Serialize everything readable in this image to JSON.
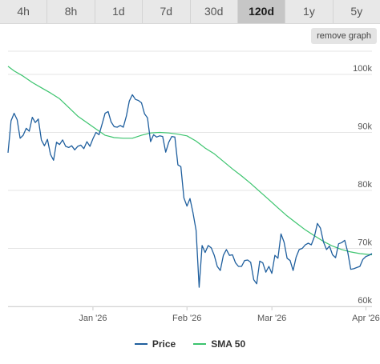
{
  "tabs": [
    {
      "label": "4h",
      "active": false
    },
    {
      "label": "8h",
      "active": false
    },
    {
      "label": "1d",
      "active": false
    },
    {
      "label": "7d",
      "active": false
    },
    {
      "label": "30d",
      "active": false
    },
    {
      "label": "120d",
      "active": true
    },
    {
      "label": "1y",
      "active": false
    },
    {
      "label": "5y",
      "active": false
    }
  ],
  "remove_graph_label": "remove graph",
  "colors": {
    "price": "#1f5f9e",
    "sma": "#3cc46e",
    "grid": "#e5e5e5"
  },
  "chart_data": {
    "type": "line",
    "x_range": [
      "2025-12-04",
      "2026-04-03"
    ],
    "ylim": [
      60000,
      104000
    ],
    "y_ticks": [
      {
        "value": 60000,
        "label": "60k"
      },
      {
        "value": 70000,
        "label": "70k"
      },
      {
        "value": 80000,
        "label": "80k"
      },
      {
        "value": 90000,
        "label": "90k"
      },
      {
        "value": 100000,
        "label": "100k"
      }
    ],
    "x_ticks": [
      {
        "date": "2026-01-01",
        "label": "Jan '26"
      },
      {
        "date": "2026-02-01",
        "label": "Feb '26"
      },
      {
        "date": "2026-03-01",
        "label": "Mar '26"
      },
      {
        "date": "2026-04-01",
        "label": "Apr '26"
      }
    ],
    "grid": true,
    "legend_position": "bottom-center",
    "series": [
      {
        "name": "Price",
        "points": [
          [
            "2025-12-04",
            86500
          ],
          [
            "2025-12-05",
            92000
          ],
          [
            "2025-12-06",
            93300
          ],
          [
            "2025-12-07",
            92200
          ],
          [
            "2025-12-08",
            89000
          ],
          [
            "2025-12-09",
            89500
          ],
          [
            "2025-12-10",
            90700
          ],
          [
            "2025-12-11",
            90200
          ],
          [
            "2025-12-12",
            92600
          ],
          [
            "2025-12-13",
            91700
          ],
          [
            "2025-12-14",
            92300
          ],
          [
            "2025-12-15",
            88700
          ],
          [
            "2025-12-16",
            87700
          ],
          [
            "2025-12-17",
            88800
          ],
          [
            "2025-12-18",
            86200
          ],
          [
            "2025-12-19",
            85200
          ],
          [
            "2025-12-20",
            88300
          ],
          [
            "2025-12-21",
            87900
          ],
          [
            "2025-12-22",
            88700
          ],
          [
            "2025-12-23",
            87600
          ],
          [
            "2025-12-24",
            87400
          ],
          [
            "2025-12-25",
            87700
          ],
          [
            "2025-12-26",
            87000
          ],
          [
            "2025-12-27",
            87600
          ],
          [
            "2025-12-28",
            87800
          ],
          [
            "2025-12-29",
            87200
          ],
          [
            "2025-12-30",
            88400
          ],
          [
            "2025-12-31",
            87600
          ],
          [
            "2026-01-01",
            88900
          ],
          [
            "2026-01-02",
            90000
          ],
          [
            "2026-01-03",
            89600
          ],
          [
            "2026-01-04",
            91400
          ],
          [
            "2026-01-05",
            93300
          ],
          [
            "2026-01-06",
            93600
          ],
          [
            "2026-01-07",
            91800
          ],
          [
            "2026-01-08",
            91000
          ],
          [
            "2026-01-09",
            90900
          ],
          [
            "2026-01-10",
            91200
          ],
          [
            "2026-01-11",
            90900
          ],
          [
            "2026-01-12",
            92800
          ],
          [
            "2026-01-13",
            95400
          ],
          [
            "2026-01-14",
            96500
          ],
          [
            "2026-01-15",
            95700
          ],
          [
            "2026-01-16",
            95500
          ],
          [
            "2026-01-17",
            95100
          ],
          [
            "2026-01-18",
            93200
          ],
          [
            "2026-01-19",
            92500
          ],
          [
            "2026-01-20",
            88400
          ],
          [
            "2026-01-21",
            89600
          ],
          [
            "2026-01-22",
            89200
          ],
          [
            "2026-01-23",
            89400
          ],
          [
            "2026-01-24",
            89300
          ],
          [
            "2026-01-25",
            86600
          ],
          [
            "2026-01-26",
            88300
          ],
          [
            "2026-01-27",
            89300
          ],
          [
            "2026-01-28",
            89200
          ],
          [
            "2026-01-29",
            84400
          ],
          [
            "2026-01-30",
            84100
          ],
          [
            "2026-01-31",
            78700
          ],
          [
            "2026-02-01",
            77300
          ],
          [
            "2026-02-02",
            78600
          ],
          [
            "2026-02-03",
            76100
          ],
          [
            "2026-02-04",
            73100
          ],
          [
            "2026-02-05",
            63300
          ],
          [
            "2026-02-06",
            70500
          ],
          [
            "2026-02-07",
            69300
          ],
          [
            "2026-02-08",
            70500
          ],
          [
            "2026-02-09",
            70100
          ],
          [
            "2026-02-10",
            68800
          ],
          [
            "2026-02-11",
            66900
          ],
          [
            "2026-02-12",
            66200
          ],
          [
            "2026-02-13",
            68800
          ],
          [
            "2026-02-14",
            69800
          ],
          [
            "2026-02-15",
            68800
          ],
          [
            "2026-02-16",
            68900
          ],
          [
            "2026-02-17",
            67500
          ],
          [
            "2026-02-18",
            66900
          ],
          [
            "2026-02-19",
            66900
          ],
          [
            "2026-02-20",
            67900
          ],
          [
            "2026-02-21",
            68000
          ],
          [
            "2026-02-22",
            67600
          ],
          [
            "2026-02-23",
            64600
          ],
          [
            "2026-02-24",
            63900
          ],
          [
            "2026-02-25",
            67800
          ],
          [
            "2026-02-26",
            67500
          ],
          [
            "2026-02-27",
            65900
          ],
          [
            "2026-02-28",
            66900
          ],
          [
            "2026-03-01",
            65700
          ],
          [
            "2026-03-02",
            68800
          ],
          [
            "2026-03-03",
            68300
          ],
          [
            "2026-03-04",
            72500
          ],
          [
            "2026-03-05",
            71100
          ],
          [
            "2026-03-06",
            68300
          ],
          [
            "2026-03-07",
            67900
          ],
          [
            "2026-03-08",
            66200
          ],
          [
            "2026-03-09",
            68500
          ],
          [
            "2026-03-10",
            69800
          ],
          [
            "2026-03-11",
            70000
          ],
          [
            "2026-03-12",
            70600
          ],
          [
            "2026-03-13",
            70900
          ],
          [
            "2026-03-14",
            70600
          ],
          [
            "2026-03-15",
            72000
          ],
          [
            "2026-03-16",
            74300
          ],
          [
            "2026-03-17",
            73500
          ],
          [
            "2026-03-18",
            71100
          ],
          [
            "2026-03-19",
            69800
          ],
          [
            "2026-03-20",
            70400
          ],
          [
            "2026-03-21",
            68900
          ],
          [
            "2026-03-22",
            68400
          ],
          [
            "2026-03-23",
            70800
          ],
          [
            "2026-03-24",
            71000
          ],
          [
            "2026-03-25",
            71400
          ],
          [
            "2026-03-26",
            69400
          ],
          [
            "2026-03-27",
            66400
          ],
          [
            "2026-03-28",
            66500
          ],
          [
            "2026-03-29",
            66700
          ],
          [
            "2026-03-30",
            66900
          ],
          [
            "2026-03-31",
            68100
          ],
          [
            "2026-04-01",
            68600
          ],
          [
            "2026-04-02",
            68800
          ],
          [
            "2026-04-03",
            69100
          ]
        ]
      },
      {
        "name": "SMA 50",
        "points": [
          [
            "2025-12-04",
            101400
          ],
          [
            "2025-12-06",
            100600
          ],
          [
            "2025-12-09",
            99700
          ],
          [
            "2025-12-12",
            98600
          ],
          [
            "2025-12-15",
            97700
          ],
          [
            "2025-12-18",
            96800
          ],
          [
            "2025-12-21",
            95800
          ],
          [
            "2025-12-24",
            94300
          ],
          [
            "2025-12-27",
            92800
          ],
          [
            "2025-12-30",
            91700
          ],
          [
            "2026-01-02",
            90600
          ],
          [
            "2026-01-05",
            89500
          ],
          [
            "2026-01-08",
            89100
          ],
          [
            "2026-01-11",
            89000
          ],
          [
            "2026-01-14",
            89000
          ],
          [
            "2026-01-17",
            89500
          ],
          [
            "2026-01-20",
            89900
          ],
          [
            "2026-01-23",
            90000
          ],
          [
            "2026-01-26",
            89900
          ],
          [
            "2026-01-29",
            89700
          ],
          [
            "2026-02-01",
            89400
          ],
          [
            "2026-02-04",
            88500
          ],
          [
            "2026-02-07",
            87300
          ],
          [
            "2026-02-10",
            86300
          ],
          [
            "2026-02-13",
            85000
          ],
          [
            "2026-02-16",
            83700
          ],
          [
            "2026-02-19",
            82500
          ],
          [
            "2026-02-22",
            81200
          ],
          [
            "2026-02-25",
            79800
          ],
          [
            "2026-02-28",
            78400
          ],
          [
            "2026-03-03",
            77000
          ],
          [
            "2026-03-06",
            75600
          ],
          [
            "2026-03-09",
            74400
          ],
          [
            "2026-03-12",
            73200
          ],
          [
            "2026-03-15",
            72200
          ],
          [
            "2026-03-18",
            71200
          ],
          [
            "2026-03-21",
            70400
          ],
          [
            "2026-03-24",
            69800
          ],
          [
            "2026-03-27",
            69400
          ],
          [
            "2026-03-30",
            69100
          ],
          [
            "2026-04-03",
            68900
          ]
        ]
      }
    ]
  }
}
